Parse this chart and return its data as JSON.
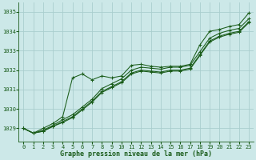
{
  "title": "Graphe pression niveau de la mer (hPa)",
  "bg_color": "#cce8e8",
  "line_color": "#1a5c1a",
  "grid_color": "#aacece",
  "x_values": [
    0,
    1,
    2,
    3,
    4,
    5,
    6,
    7,
    8,
    9,
    10,
    11,
    12,
    13,
    14,
    15,
    16,
    17,
    18,
    19,
    20,
    21,
    22,
    23
  ],
  "series": [
    [
      1029.0,
      1028.75,
      1028.85,
      1029.1,
      1029.3,
      1029.55,
      1029.95,
      1030.35,
      1030.85,
      1031.1,
      1031.35,
      1031.8,
      1031.95,
      1031.9,
      1031.85,
      1031.95,
      1031.95,
      1032.05,
      1032.75,
      1033.45,
      1033.7,
      1033.85,
      1033.95,
      1034.45
    ],
    [
      1029.0,
      1028.75,
      1028.85,
      1029.1,
      1029.35,
      1029.6,
      1030.0,
      1030.4,
      1030.9,
      1031.15,
      1031.4,
      1031.85,
      1032.0,
      1031.95,
      1031.9,
      1032.0,
      1032.0,
      1032.1,
      1032.8,
      1033.5,
      1033.75,
      1033.9,
      1034.0,
      1034.5
    ],
    [
      1029.0,
      1028.75,
      1028.9,
      1029.15,
      1029.45,
      1029.7,
      1030.1,
      1030.5,
      1031.05,
      1031.3,
      1031.55,
      1032.0,
      1032.15,
      1032.1,
      1032.05,
      1032.15,
      1032.15,
      1032.25,
      1032.95,
      1033.65,
      1033.9,
      1034.05,
      1034.15,
      1034.65
    ],
    [
      1029.0,
      1028.75,
      1029.0,
      1029.25,
      1029.6,
      1031.6,
      1031.8,
      1031.5,
      1031.7,
      1031.6,
      1031.7,
      1032.25,
      1032.3,
      1032.2,
      1032.15,
      1032.2,
      1032.2,
      1032.3,
      1033.3,
      1034.0,
      1034.1,
      1034.25,
      1034.35,
      1034.95
    ]
  ],
  "ylim": [
    1028.3,
    1035.5
  ],
  "yticks": [
    1029,
    1030,
    1031,
    1032,
    1033,
    1034,
    1035
  ],
  "xlim": [
    -0.5,
    23.5
  ],
  "xticks": [
    0,
    1,
    2,
    3,
    4,
    5,
    6,
    7,
    8,
    9,
    10,
    11,
    12,
    13,
    14,
    15,
    16,
    17,
    18,
    19,
    20,
    21,
    22,
    23
  ],
  "ylabel_fontsize": 5.5,
  "tick_fontsize": 5,
  "xlabel_fontsize": 6
}
